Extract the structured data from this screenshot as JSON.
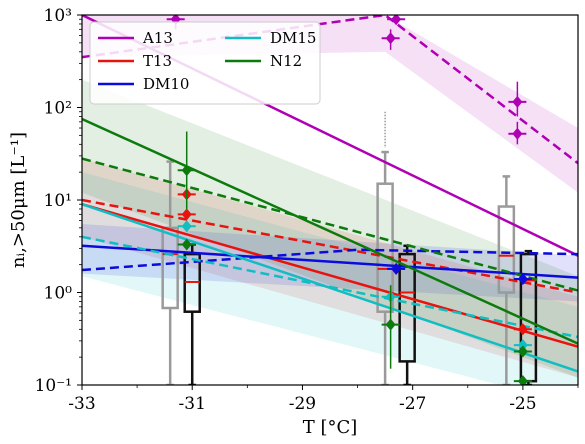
{
  "chart_data": {
    "type": "line",
    "xlabel": "T [°C]",
    "ylabel": "nᵢ,>50μm [L⁻¹]",
    "xlim": [
      -33,
      -24
    ],
    "ylim": [
      0.1,
      1000
    ],
    "yscale": "log",
    "x_ticks": [
      -33,
      -31,
      -29,
      -27,
      -25
    ],
    "x_tick_labels": [
      "-33",
      "-31",
      "-29",
      "-27",
      "-25"
    ],
    "y_ticks": [
      0.1,
      1,
      10,
      100,
      1000
    ],
    "y_tick_labels": [
      "10⁻¹",
      "10⁰",
      "10¹",
      "10²",
      "10³"
    ],
    "grid": false,
    "legend": {
      "placement": "top-left",
      "columns": 2
    },
    "colors": {
      "A13": "#b000b5",
      "T13": "#e8130f",
      "DM10": "#0b0bdc",
      "DM15": "#10bec2",
      "N12": "#0d7a0d",
      "box_gray": "#9a9a9a",
      "box_black": "#111111"
    },
    "series": [
      {
        "name": "A13",
        "color": "#b000b5",
        "solid": {
          "x": [
            -33,
            -24
          ],
          "y": [
            1000,
            2.5
          ]
        },
        "dashed": {
          "x": [
            -33,
            -27.5,
            -24
          ],
          "y": [
            350,
            1000,
            25
          ]
        },
        "band": {
          "x": [
            -33,
            -27.5,
            -24
          ],
          "lower": [
            350,
            400,
            12
          ],
          "upper": [
            1000,
            1000,
            60
          ]
        },
        "markers": [
          {
            "x": -31.3,
            "y": 900,
            "yerr": [
              700,
              1100
            ]
          },
          {
            "x": -27.3,
            "y": 900
          },
          {
            "x": -27.4,
            "y": 560,
            "yerr": [
              420,
              700
            ]
          },
          {
            "x": -25.1,
            "y": 115,
            "yerr": [
              80,
              190
            ]
          },
          {
            "x": -25.1,
            "y": 52,
            "yerr": [
              40,
              70
            ]
          }
        ]
      },
      {
        "name": "T13",
        "color": "#e8130f",
        "solid": {
          "x": [
            -33,
            -24
          ],
          "y": [
            9,
            0.26
          ]
        },
        "dashed": {
          "x": [
            -33,
            -24
          ],
          "y": [
            10,
            1.0
          ]
        },
        "band": {
          "x": [
            -33,
            -24
          ],
          "lower": [
            4,
            0.12
          ],
          "upper": [
            28,
            0.9
          ]
        },
        "markers": [
          {
            "x": -31.1,
            "y": 11.5
          },
          {
            "x": -31.1,
            "y": 7
          },
          {
            "x": -27.3,
            "y": 1.8
          },
          {
            "x": -25.0,
            "y": 0.4
          }
        ]
      },
      {
        "name": "DM10",
        "color": "#0b0bdc",
        "solid": {
          "x": [
            -33,
            -24
          ],
          "y": [
            3.2,
            1.45
          ]
        },
        "dashed": {
          "x": [
            -33,
            -28,
            -24
          ],
          "y": [
            1.75,
            2.9,
            2.6
          ]
        },
        "band": {
          "x": [
            -33,
            -24
          ],
          "lower": [
            1.6,
            0.8
          ],
          "upper": [
            5.5,
            2.5
          ]
        },
        "markers": [
          {
            "x": -27.3,
            "y": 1.8
          },
          {
            "x": -25.0,
            "y": 1.4
          }
        ]
      },
      {
        "name": "DM15",
        "color": "#10bec2",
        "solid": {
          "x": [
            -33,
            -24
          ],
          "y": [
            9,
            0.14
          ]
        },
        "dashed": {
          "x": [
            -33,
            -24
          ],
          "y": [
            4,
            0.33
          ]
        },
        "band": {
          "x": [
            -33,
            -24
          ],
          "lower": [
            1.5,
            0.06
          ],
          "upper": [
            20,
            0.7
          ]
        },
        "markers": [
          {
            "x": -31.1,
            "y": 5.2
          },
          {
            "x": -27.4,
            "y": 0.9
          },
          {
            "x": -25.0,
            "y": 0.27
          }
        ]
      },
      {
        "name": "N12",
        "color": "#0d7a0d",
        "solid": {
          "x": [
            -33,
            -24
          ],
          "y": [
            75,
            0.28
          ]
        },
        "dashed": {
          "x": [
            -33,
            -24
          ],
          "y": [
            28,
            1.05
          ]
        },
        "band": {
          "x": [
            -33,
            -24
          ],
          "lower": [
            12,
            0.12
          ],
          "upper": [
            200,
            1.5
          ]
        },
        "markers": [
          {
            "x": -31.1,
            "y": 21,
            "yerr": [
              8,
              55
            ]
          },
          {
            "x": -31.1,
            "y": 3.3
          },
          {
            "x": -27.4,
            "y": 0.45,
            "yerr": [
              0.15,
              1.2
            ]
          },
          {
            "x": -25.0,
            "y": 0.23
          },
          {
            "x": -25.0,
            "y": 0.11
          }
        ]
      }
    ],
    "boxplots": [
      {
        "group": "gray",
        "color": "#9a9a9a",
        "x": -31.4,
        "q1": 0.68,
        "median": 2.6,
        "q3": 5,
        "whisker_low": 0.1,
        "whisker_high": 26
      },
      {
        "group": "black",
        "color": "#111111",
        "x": -31.0,
        "q1": 0.62,
        "median": 1.3,
        "q3": 2.6,
        "whisker_low": 0.1,
        "whisker_high": 3.3
      },
      {
        "group": "gray",
        "color": "#9a9a9a",
        "x": -27.5,
        "q1": 0.62,
        "median": 1.8,
        "q3": 15,
        "whisker_low": 0.1,
        "whisker_high": 33,
        "outlier_high": 90
      },
      {
        "group": "black",
        "color": "#111111",
        "x": -27.1,
        "q1": 0.18,
        "median": 1.0,
        "q3": 2.6,
        "whisker_low": 0.1,
        "whisker_high": 3.2
      },
      {
        "group": "gray",
        "color": "#9a9a9a",
        "x": -25.3,
        "q1": 1.0,
        "median": 2.5,
        "q3": 8.5,
        "whisker_low": 0.1,
        "whisker_high": 18
      },
      {
        "group": "black",
        "color": "#111111",
        "x": -24.9,
        "q1": 0.11,
        "median": 1.35,
        "q3": 2.6,
        "whisker_low": 0.1,
        "whisker_high": 2.8
      }
    ]
  }
}
